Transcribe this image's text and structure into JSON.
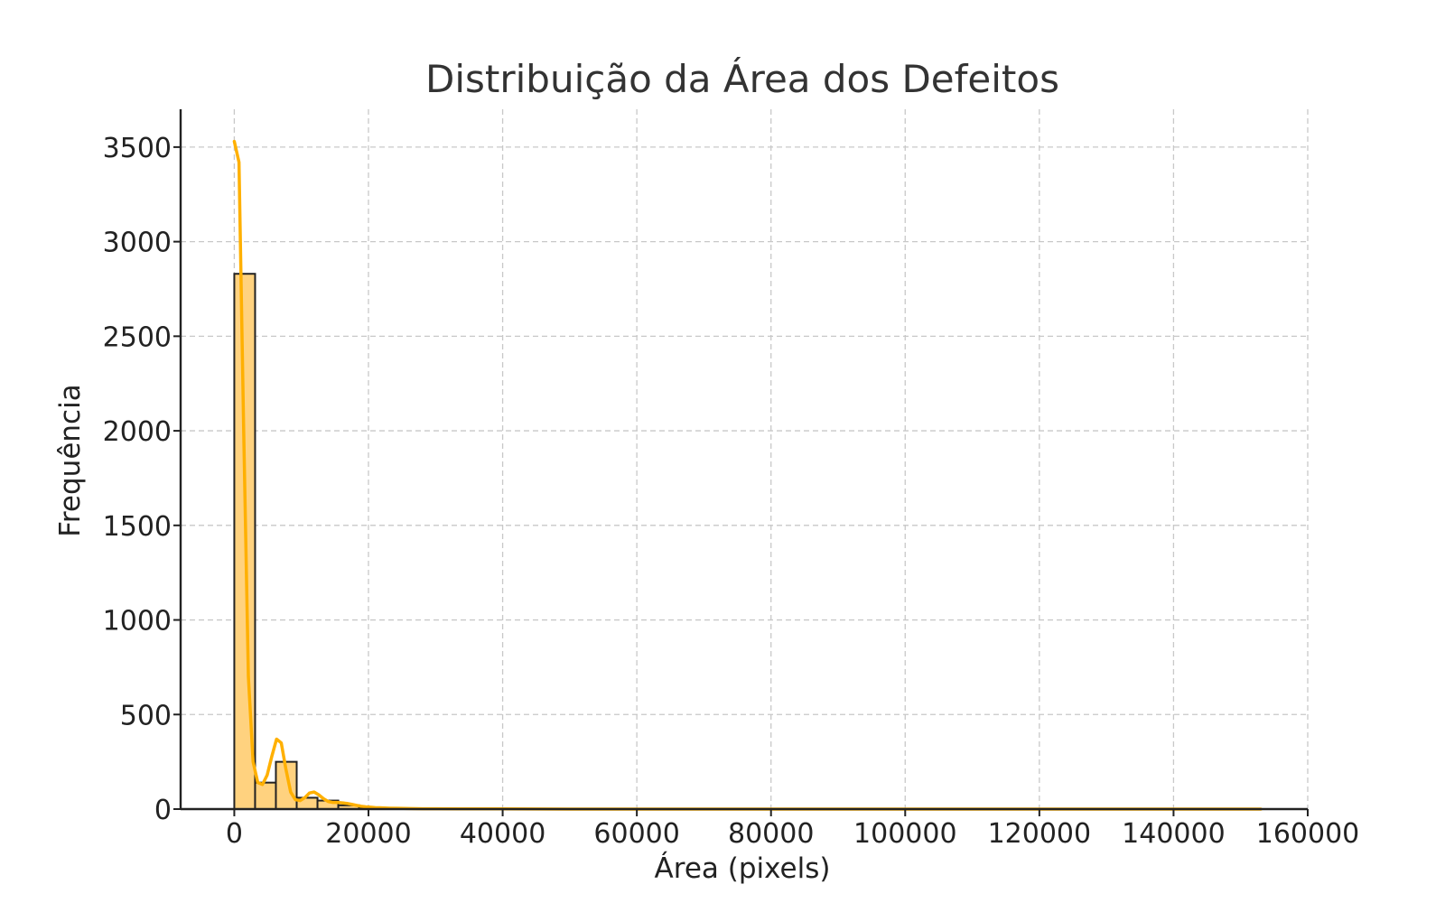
{
  "chart_data": {
    "type": "bar",
    "title": "Distribuição da Área dos Defeitos",
    "xlabel": "Área (pixels)",
    "ylabel": "Frequência",
    "xlim": [
      -8000,
      160000
    ],
    "ylim": [
      0,
      3700
    ],
    "x_ticks": [
      0,
      20000,
      40000,
      60000,
      80000,
      100000,
      120000,
      140000,
      160000
    ],
    "y_ticks": [
      0,
      500,
      1000,
      1500,
      2000,
      2500,
      3000,
      3500
    ],
    "grid": true,
    "legend": "none",
    "histogram": {
      "bin_edges": [
        0,
        3100,
        6200,
        9300,
        12400,
        15500,
        18600,
        21700,
        24800,
        27900,
        31000
      ],
      "counts": [
        2830,
        140,
        250,
        60,
        45,
        20,
        8,
        5,
        3,
        2
      ]
    },
    "series": [
      {
        "type": "line",
        "x": [
          0,
          700,
          1400,
          2100,
          2800,
          3500,
          4200,
          4900,
          5600,
          6300,
          7000,
          7700,
          8400,
          9100,
          9800,
          10500,
          11200,
          11900,
          12600,
          13300,
          14000,
          14700,
          15400,
          16100,
          16800,
          17500,
          18200,
          18900,
          19600,
          20300,
          21000,
          21700,
          22400,
          23100,
          24500,
          26000,
          28000,
          30000,
          35000,
          40000,
          50000,
          60000,
          70000,
          80000,
          90000,
          100000,
          110000,
          120000,
          130000,
          140000,
          150000,
          153000
        ],
        "values": [
          3530,
          3420,
          2000,
          700,
          250,
          140,
          130,
          180,
          280,
          370,
          350,
          210,
          90,
          50,
          45,
          60,
          85,
          90,
          75,
          55,
          40,
          35,
          35,
          33,
          30,
          25,
          20,
          15,
          12,
          10,
          8,
          7,
          6,
          5,
          4,
          3,
          2,
          2,
          1,
          1,
          0,
          0,
          0,
          0,
          0,
          0,
          0,
          0,
          0,
          0,
          0,
          0
        ]
      }
    ],
    "colors": {
      "bar_fill": "#ffd27f",
      "bar_edge": "#222222",
      "kde_line": "#ffb000",
      "grid": "#c8c8c8",
      "axis": "#222222"
    }
  }
}
